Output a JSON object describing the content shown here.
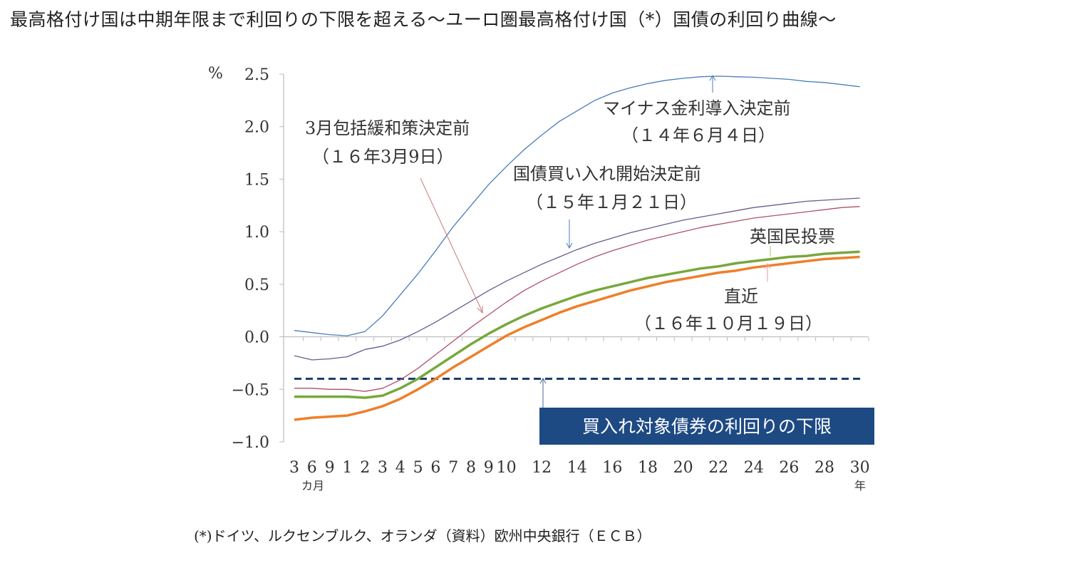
{
  "title": "最高格付け国は中期年限まで利回りの下限を超える～ユーロ圏最高格付け国（*）国債の利回り曲線～",
  "footnote": "(*)ドイツ、ルクセンブルク、オランダ（資料）欧州中央銀行（ＥＣＢ）",
  "chart_data": {
    "type": "line",
    "title": "",
    "ylabel": "%",
    "ylim": [
      -1.0,
      2.5
    ],
    "yticks": [
      "2.5",
      "2.0",
      "1.5",
      "1.0",
      "0.5",
      "0.0",
      "−0.5",
      "−1.0"
    ],
    "ytick_values": [
      2.5,
      2.0,
      1.5,
      1.0,
      0.5,
      0.0,
      -0.5,
      -1.0
    ],
    "x": [
      "3M",
      "6M",
      "9M",
      "1",
      "2",
      "3",
      "4",
      "5",
      "6",
      "7",
      "8",
      "9",
      "10",
      "11",
      "12",
      "13",
      "14",
      "15",
      "16",
      "17",
      "18",
      "19",
      "20",
      "21",
      "22",
      "23",
      "24",
      "25",
      "26",
      "27",
      "28",
      "29",
      "30"
    ],
    "xtick_labels": [
      "3",
      "6",
      "9",
      "1",
      "2",
      "3",
      "4",
      "5",
      "6",
      "7",
      "8",
      "9",
      "10",
      "",
      "12",
      "",
      "14",
      "",
      "16",
      "",
      "18",
      "",
      "20",
      "",
      "22",
      "",
      "24",
      "",
      "26",
      "",
      "28",
      "",
      "30"
    ],
    "x_unit_months": "カ月",
    "x_unit_years": "年",
    "grid": false,
    "series": [
      {
        "name": "マイナス金利導入決定前（１４年６月４日）",
        "color": "#4a7ebb",
        "width": 1.3,
        "values": [
          0.06,
          0.04,
          0.02,
          0.01,
          0.05,
          0.2,
          0.4,
          0.6,
          0.82,
          1.05,
          1.25,
          1.45,
          1.62,
          1.78,
          1.92,
          2.05,
          2.15,
          2.25,
          2.32,
          2.37,
          2.41,
          2.44,
          2.46,
          2.475,
          2.48,
          2.475,
          2.47,
          2.46,
          2.45,
          2.43,
          2.42,
          2.4,
          2.38
        ]
      },
      {
        "name": "国債買い入れ開始決定前（１５年１月２１日）",
        "color": "#6c5a8f",
        "width": 1.3,
        "values": [
          -0.18,
          -0.22,
          -0.21,
          -0.19,
          -0.12,
          -0.09,
          -0.03,
          0.05,
          0.14,
          0.24,
          0.34,
          0.44,
          0.53,
          0.61,
          0.69,
          0.76,
          0.83,
          0.89,
          0.94,
          0.99,
          1.03,
          1.07,
          1.11,
          1.14,
          1.17,
          1.2,
          1.23,
          1.25,
          1.27,
          1.29,
          1.3,
          1.31,
          1.32
        ]
      },
      {
        "name": "3月包括緩和策決定前（１６年3月9日）",
        "color": "#b0506a",
        "width": 1.3,
        "values": [
          -0.49,
          -0.49,
          -0.5,
          -0.5,
          -0.52,
          -0.49,
          -0.41,
          -0.3,
          -0.17,
          -0.04,
          0.09,
          0.21,
          0.33,
          0.44,
          0.53,
          0.61,
          0.69,
          0.76,
          0.82,
          0.87,
          0.92,
          0.96,
          1.0,
          1.04,
          1.07,
          1.1,
          1.13,
          1.15,
          1.17,
          1.19,
          1.21,
          1.23,
          1.24
        ]
      },
      {
        "name": "英国民投票",
        "color": "#77a83c",
        "width": 3.5,
        "values": [
          -0.57,
          -0.57,
          -0.57,
          -0.57,
          -0.58,
          -0.56,
          -0.49,
          -0.4,
          -0.29,
          -0.18,
          -0.07,
          0.03,
          0.12,
          0.2,
          0.27,
          0.33,
          0.39,
          0.44,
          0.48,
          0.52,
          0.56,
          0.59,
          0.62,
          0.65,
          0.67,
          0.7,
          0.72,
          0.74,
          0.76,
          0.77,
          0.79,
          0.8,
          0.81
        ]
      },
      {
        "name": "直近（１６年１０月１９日）",
        "color": "#ef7f2a",
        "width": 3.5,
        "values": [
          -0.79,
          -0.77,
          -0.76,
          -0.75,
          -0.71,
          -0.66,
          -0.59,
          -0.5,
          -0.4,
          -0.29,
          -0.19,
          -0.09,
          0.01,
          0.09,
          0.16,
          0.23,
          0.29,
          0.34,
          0.39,
          0.44,
          0.48,
          0.52,
          0.55,
          0.58,
          0.61,
          0.63,
          0.66,
          0.68,
          0.7,
          0.72,
          0.74,
          0.75,
          0.76
        ]
      }
    ],
    "reference_line": {
      "value": -0.4,
      "color": "#1f3d6e",
      "style": "dashed",
      "label": "買入れ対象債券の利回りの下限",
      "label_bg": "#1e4a84"
    },
    "annotations": {
      "a2014_line1": "マイナス金利導入決定前",
      "a2014_line2": "（１４年６月４日）",
      "a2016m_line1": "3月包括緩和策決定前",
      "a2016m_line2": "（１６年3月9日）",
      "a2015_line1": "国債買い入れ開始決定前",
      "a2015_line2": "（１５年１月２１日）",
      "brexit": "英国民投票",
      "latest_line1": "直近",
      "latest_line2": "（１６年１０月１９日）"
    }
  }
}
